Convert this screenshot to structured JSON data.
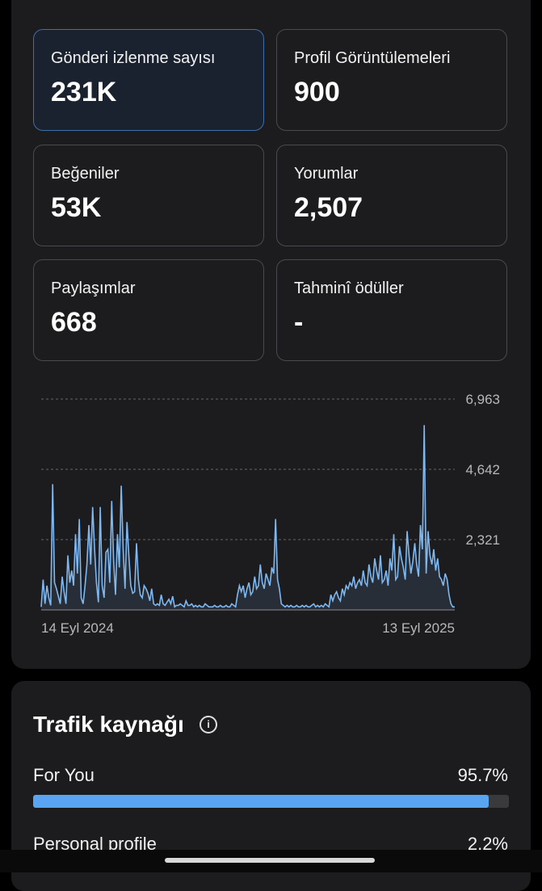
{
  "metrics": [
    {
      "label": "Gönderi izlenme sayısı",
      "value": "231K",
      "active": true
    },
    {
      "label": "Profil Görüntülemeleri",
      "value": "900"
    },
    {
      "label": "Beğeniler",
      "value": "53K"
    },
    {
      "label": "Yorumlar",
      "value": "2,507"
    },
    {
      "label": "Paylaşımlar",
      "value": "668"
    },
    {
      "label": "Tahminî ödüller",
      "value": "-"
    }
  ],
  "chart_data": {
    "type": "line",
    "y_ticks": [
      "6,963",
      "4,642",
      "2,321"
    ],
    "y_max": 6963,
    "x_labels": [
      "14 Eyl 2024",
      "13 Eyl 2025"
    ],
    "grid": true,
    "color": "#7fb8f0",
    "values": [
      100,
      1000,
      200,
      800,
      400,
      150,
      4150,
      900,
      700,
      450,
      200,
      1100,
      600,
      200,
      1800,
      900,
      1300,
      800,
      2500,
      1200,
      3000,
      400,
      200,
      800,
      1500,
      2800,
      1500,
      3400,
      2000,
      900,
      250,
      3400,
      800,
      400,
      1900,
      2000,
      900,
      3600,
      1600,
      500,
      2500,
      1400,
      4100,
      2000,
      700,
      2900,
      1800,
      800,
      550,
      600,
      2200,
      1000,
      500,
      400,
      800,
      700,
      550,
      300,
      700,
      200,
      150,
      200,
      150,
      500,
      200,
      150,
      250,
      350,
      200,
      450,
      100,
      150,
      150,
      200,
      150,
      100,
      300,
      150,
      150,
      200,
      100,
      150,
      100,
      150,
      100,
      100,
      200,
      150,
      100,
      100,
      100,
      150,
      100,
      100,
      150,
      100,
      100,
      150,
      100,
      100,
      200,
      150,
      100,
      500,
      800,
      600,
      800,
      400,
      700,
      900,
      500,
      600,
      1100,
      700,
      800,
      1500,
      900,
      700,
      1200,
      1000,
      800,
      1400,
      1200,
      3000,
      1000,
      700,
      200,
      150,
      100,
      150,
      100,
      150,
      100,
      100,
      150,
      100,
      100,
      150,
      100,
      150,
      100,
      100,
      150,
      200,
      100,
      150,
      100,
      150,
      100,
      200,
      150,
      100,
      500,
      300,
      500,
      600,
      400,
      300,
      700,
      500,
      800,
      700,
      900,
      800,
      1100,
      700,
      900,
      1000,
      800,
      1300,
      900,
      800,
      1500,
      1100,
      900,
      1700,
      1300,
      1000,
      1800,
      900,
      1000,
      1300,
      800,
      1700,
      1300,
      2500,
      1000,
      1100,
      2100,
      1700,
      1400,
      1000,
      2600,
      1800,
      1200,
      1600,
      2200,
      1500,
      1100,
      2800,
      2000,
      6100,
      1200,
      2600,
      1800,
      1500,
      2000,
      1300,
      1700,
      1100,
      1000,
      800,
      1200,
      1000,
      500,
      200,
      100,
      100
    ]
  },
  "traffic": {
    "title": "Trafik kaynağı",
    "info_icon": "info-icon",
    "sources": [
      {
        "name": "For You",
        "pct": "95.7%",
        "fraction": 0.957
      },
      {
        "name": "Personal profile",
        "pct": "2.2%",
        "fraction": 0.022
      }
    ]
  }
}
